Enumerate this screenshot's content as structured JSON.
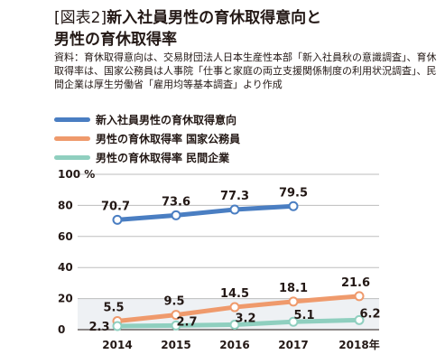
{
  "title": {
    "prefix": "[図表2]",
    "main": "新入社員男性の育休取得意向と",
    "line2": "男性の育休取得率"
  },
  "source_note": "資料：育休取得意向は、交易財団法人日本生産性本部「新入社員秋の意識調査」、育休取得率は、国家公務員は人事院「仕事と家庭の両立支援関係制度の利用状況調査」、民間企業は厚生労働省「雇用均等基本調査」より作成",
  "legend": [
    {
      "label": "新入社員男性の育休取得意向",
      "color": "#4a7ec2"
    },
    {
      "label": "男性の育休取得率 国家公務員",
      "color": "#ef9a6c"
    },
    {
      "label": "男性の育休取得率 民間企業",
      "color": "#8fcfbf"
    }
  ],
  "chart_data": {
    "type": "line",
    "title": "新入社員男性の育休取得意向と男性の育休取得率",
    "categories": [
      "2014",
      "2015",
      "2016",
      "2017",
      "2018年"
    ],
    "ylabel": "%",
    "ylim": [
      0,
      100
    ],
    "yticks": [
      0,
      20,
      40,
      60,
      80,
      100
    ],
    "ytick_labels": [
      "0",
      "20",
      "40",
      "60",
      "80",
      "100 %"
    ],
    "grid": true,
    "legend_position": "top-left",
    "series": [
      {
        "name": "新入社員男性の育休取得意向",
        "color": "#4a7ec2",
        "values": [
          70.7,
          73.6,
          77.3,
          79.5,
          null
        ],
        "labels": [
          "70.7",
          "73.6",
          "77.3",
          "79.5",
          ""
        ]
      },
      {
        "name": "男性の育休取得率 国家公務員",
        "color": "#ef9a6c",
        "values": [
          5.5,
          9.5,
          14.5,
          18.1,
          21.6
        ],
        "labels": [
          "5.5",
          "9.5",
          "14.5",
          "18.1",
          "21.6"
        ]
      },
      {
        "name": "男性の育休取得率 民間企業",
        "color": "#8fcfbf",
        "values": [
          2.3,
          2.7,
          3.2,
          5.1,
          6.2
        ],
        "labels": [
          "2.3",
          "2.7",
          "3.2",
          "5.1",
          "6.2"
        ]
      }
    ]
  }
}
